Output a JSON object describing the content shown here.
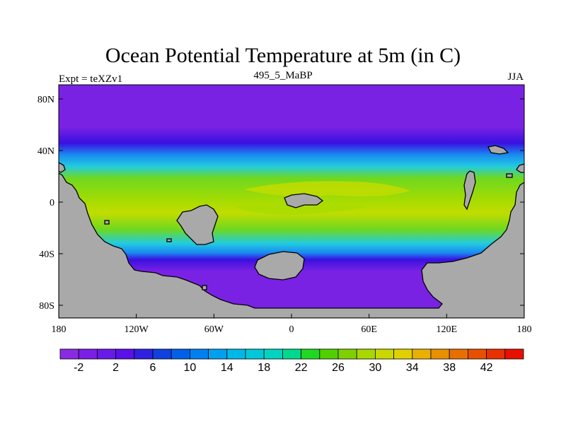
{
  "title": "Ocean Potential Temperature at 5m (in C)",
  "left_string": "Expt = teXZv1",
  "center_string": "495_5_MaBP",
  "right_string": "JJA",
  "axes": {
    "lon_ticks": [
      "180",
      "120W",
      "60W",
      "0",
      "60E",
      "120E",
      "180"
    ],
    "lat_ticks": [
      "80N",
      "40N",
      "0",
      "40S",
      "80S"
    ]
  },
  "colorbar": {
    "labels": [
      "-2",
      "2",
      "6",
      "10",
      "14",
      "18",
      "22",
      "26",
      "30",
      "34",
      "38",
      "42"
    ],
    "colors": [
      "#8a2be2",
      "#7a1fe6",
      "#6a1ae8",
      "#5a10e6",
      "#3020e0",
      "#1040e0",
      "#0060e8",
      "#0080f0",
      "#00a0f0",
      "#00b8e8",
      "#00c8d8",
      "#00d4c0",
      "#00d890",
      "#20d820",
      "#50d000",
      "#80d000",
      "#a8d800",
      "#c8d800",
      "#e0d000",
      "#e8b000",
      "#e89000",
      "#e87000",
      "#e85000",
      "#e83000",
      "#e81000"
    ]
  },
  "colors": {
    "land": "#a9a9a9",
    "polar": "#7a22e4",
    "deep_blue": "#3a10e0",
    "mid_blue": "#1a8af0",
    "cyan": "#22cce0",
    "green": "#6ed820",
    "lime": "#a8dc00",
    "yellow_green": "#c2dc00"
  }
}
